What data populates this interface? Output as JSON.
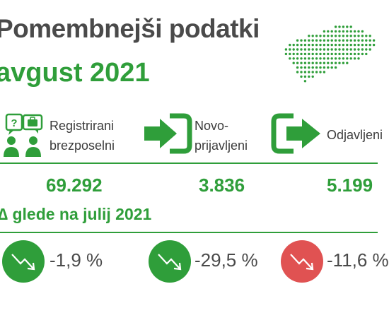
{
  "header": {
    "title": "Pomembnejši podatki",
    "month": "avgust 2021"
  },
  "map": {
    "icon": "slovenia-dot-map-icon",
    "color": "#2f9e3a"
  },
  "columns": [
    {
      "icon": "unemployed-people-icon",
      "label_line1": "Registrirani",
      "label_line2": "brezposelni",
      "value": "69.292"
    },
    {
      "icon": "sign-in-arrow-icon",
      "label_line1": "Novo-",
      "label_line2": "prijavljeni",
      "value": "3.836"
    },
    {
      "icon": "sign-out-arrow-icon",
      "label_line1": "Odjavljeni",
      "label_line2": "",
      "value": "5.199"
    }
  ],
  "delta": {
    "heading": "∆ glede na julij 2021",
    "items": [
      {
        "value": "-1,9 %",
        "icon": "trend-down-icon",
        "color": "#2f9e3a"
      },
      {
        "value": "-29,5 %",
        "icon": "trend-down-icon",
        "color": "#2f9e3a"
      },
      {
        "value": "-11,6 %",
        "icon": "trend-down-icon",
        "color": "#e05252"
      }
    ]
  },
  "colors": {
    "accent": "#2f9e3a",
    "text": "#4a4a4a",
    "negative": "#e05252"
  }
}
